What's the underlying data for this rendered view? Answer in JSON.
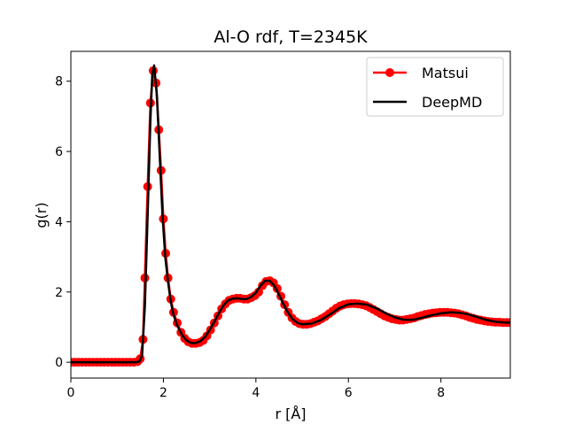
{
  "chart_data": {
    "type": "line",
    "title": "Al-O rdf, T=2345K",
    "xlabel": "r [Å]",
    "ylabel": "g(r)",
    "xlim": [
      0,
      9.5
    ],
    "ylim": [
      -0.45,
      8.85
    ],
    "xticks": [
      0,
      2,
      4,
      6,
      8
    ],
    "xtick_labels": [
      "0",
      "2",
      "4",
      "6",
      "8"
    ],
    "yticks": [
      0,
      2,
      4,
      6,
      8
    ],
    "ytick_labels": [
      "0",
      "2",
      "4",
      "6",
      "8"
    ],
    "grid": false,
    "legend_position": "top-right",
    "series": [
      {
        "name": "Matsui",
        "color": "#ff0000",
        "marker": "circle",
        "x": [
          0,
          0.08,
          0.16,
          0.24,
          0.32,
          0.4,
          0.48,
          0.56,
          0.64,
          0.72,
          0.8,
          0.88,
          0.96,
          1.04,
          1.12,
          1.2,
          1.28,
          1.36,
          1.44,
          1.5,
          1.56,
          1.6,
          1.66,
          1.72,
          1.78,
          1.84,
          1.9,
          1.95,
          2.0,
          2.05,
          2.1,
          2.16,
          2.22,
          2.3,
          2.38,
          2.46,
          2.54,
          2.62,
          2.7,
          2.78,
          2.86,
          2.94,
          3.02,
          3.1,
          3.18,
          3.26,
          3.34,
          3.42,
          3.5,
          3.58,
          3.66,
          3.74,
          3.82,
          3.9,
          3.98,
          4.06,
          4.14,
          4.22,
          4.3,
          4.38,
          4.46,
          4.54,
          4.62,
          4.7,
          4.78,
          4.86,
          4.94,
          5.02,
          5.1,
          5.18,
          5.26,
          5.34,
          5.42,
          5.5,
          5.58,
          5.66,
          5.74,
          5.82,
          5.9,
          5.98,
          6.06,
          6.14,
          6.22,
          6.3,
          6.38,
          6.46,
          6.54,
          6.62,
          6.7,
          6.78,
          6.86,
          6.94,
          7.02,
          7.1,
          7.18,
          7.26,
          7.34,
          7.42,
          7.5,
          7.58,
          7.66,
          7.74,
          7.82,
          7.9,
          7.98,
          8.06,
          8.14,
          8.22,
          8.3,
          8.38,
          8.46,
          8.54,
          8.62,
          8.7,
          8.78,
          8.86,
          8.94,
          9.02,
          9.1,
          9.18,
          9.26,
          9.34,
          9.42,
          9.5
        ],
        "y": [
          0,
          0,
          0,
          0,
          0,
          0,
          0,
          0,
          0,
          0,
          0,
          0,
          0,
          0,
          0,
          0,
          0,
          0,
          0.02,
          0.1,
          0.65,
          2.4,
          5.0,
          7.38,
          8.3,
          7.95,
          6.62,
          5.46,
          4.08,
          3.1,
          2.4,
          1.8,
          1.42,
          1.12,
          0.85,
          0.68,
          0.58,
          0.54,
          0.54,
          0.56,
          0.62,
          0.75,
          0.92,
          1.12,
          1.32,
          1.52,
          1.66,
          1.76,
          1.8,
          1.82,
          1.82,
          1.8,
          1.8,
          1.84,
          1.9,
          2.0,
          2.18,
          2.3,
          2.32,
          2.26,
          2.1,
          1.88,
          1.64,
          1.42,
          1.26,
          1.16,
          1.1,
          1.08,
          1.08,
          1.1,
          1.14,
          1.18,
          1.24,
          1.3,
          1.38,
          1.46,
          1.54,
          1.6,
          1.64,
          1.66,
          1.67,
          1.67,
          1.66,
          1.64,
          1.61,
          1.56,
          1.5,
          1.44,
          1.38,
          1.32,
          1.28,
          1.24,
          1.22,
          1.2,
          1.2,
          1.22,
          1.24,
          1.26,
          1.3,
          1.33,
          1.36,
          1.38,
          1.4,
          1.41,
          1.42,
          1.42,
          1.42,
          1.41,
          1.4,
          1.38,
          1.35,
          1.32,
          1.28,
          1.25,
          1.22,
          1.2,
          1.18,
          1.16,
          1.15,
          1.14,
          1.14,
          1.13,
          1.13,
          1.13
        ]
      },
      {
        "name": "DeepMD",
        "color": "#000000",
        "marker": "none",
        "x": [
          0,
          0.4,
          0.8,
          1.2,
          1.4,
          1.48,
          1.54,
          1.6,
          1.66,
          1.72,
          1.76,
          1.8,
          1.86,
          1.92,
          1.98,
          2.04,
          2.1,
          2.16,
          2.22,
          2.3,
          2.4,
          2.5,
          2.6,
          2.7,
          2.8,
          2.9,
          3.0,
          3.1,
          3.2,
          3.3,
          3.4,
          3.5,
          3.6,
          3.7,
          3.8,
          3.9,
          4.0,
          4.1,
          4.2,
          4.3,
          4.4,
          4.5,
          4.6,
          4.7,
          4.8,
          4.9,
          5.0,
          5.2,
          5.4,
          5.6,
          5.8,
          6.0,
          6.2,
          6.4,
          6.6,
          6.8,
          7.0,
          7.2,
          7.4,
          7.6,
          7.8,
          8.0,
          8.2,
          8.4,
          8.6,
          8.8,
          9.0,
          9.2,
          9.4,
          9.5
        ],
        "y": [
          0,
          0,
          0,
          0,
          0,
          0.02,
          0.2,
          1.6,
          4.2,
          6.9,
          8.2,
          8.45,
          7.6,
          5.9,
          4.2,
          3.0,
          2.3,
          1.72,
          1.35,
          1.05,
          0.78,
          0.62,
          0.55,
          0.55,
          0.6,
          0.72,
          0.92,
          1.15,
          1.4,
          1.62,
          1.76,
          1.81,
          1.82,
          1.8,
          1.8,
          1.86,
          1.98,
          2.18,
          2.32,
          2.32,
          2.18,
          1.92,
          1.64,
          1.4,
          1.22,
          1.12,
          1.08,
          1.1,
          1.2,
          1.36,
          1.54,
          1.65,
          1.67,
          1.64,
          1.54,
          1.4,
          1.28,
          1.21,
          1.21,
          1.27,
          1.34,
          1.39,
          1.42,
          1.41,
          1.36,
          1.28,
          1.2,
          1.15,
          1.13,
          1.13
        ]
      }
    ]
  }
}
